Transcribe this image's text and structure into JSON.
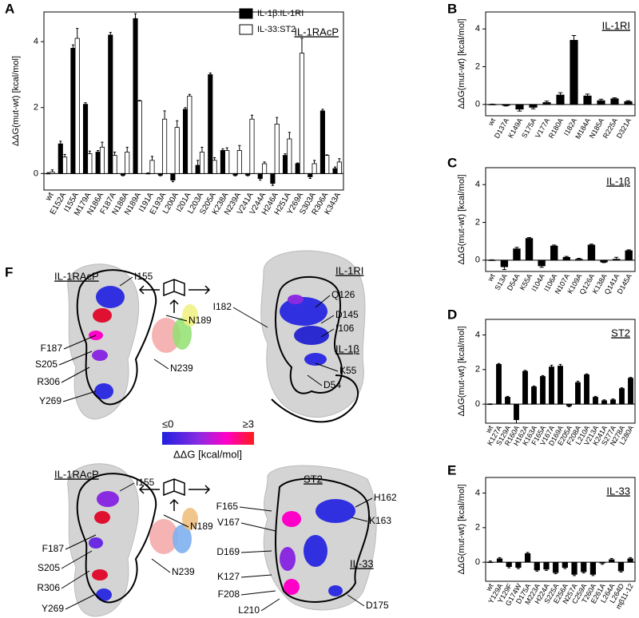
{
  "chart_data": [
    {
      "type": "bar",
      "panel": "A",
      "y_label": "ΔΔG(mut-wt) [kcal/mol]",
      "annotation": "IL-1RAcP",
      "categories": [
        "wt",
        "E152A",
        "I155A",
        "M179A",
        "N186A",
        "F187A",
        "N188A",
        "N189A",
        "I191A",
        "E193A",
        "L200A",
        "I201A",
        "L203A",
        "S205A",
        "K238A",
        "N239A",
        "V241A",
        "V244A",
        "H246A",
        "H251A",
        "Y269A",
        "S303A",
        "R306A",
        "K343A"
      ],
      "series": [
        {
          "name": "IL-1β:IL-1RI",
          "color": "#000000",
          "values": [
            0,
            0.9,
            3.8,
            2.1,
            0.65,
            4.2,
            -0.05,
            4.7,
            0,
            -0.05,
            -0.2,
            1.95,
            0.25,
            3.0,
            0.7,
            -0.05,
            -0.05,
            -0.15,
            -0.3,
            0.55,
            0.3,
            -0.1,
            1.9,
            0.15
          ],
          "errors": [
            0.03,
            0.08,
            0.1,
            0.05,
            0.05,
            0.08,
            0.02,
            0.15,
            0.02,
            0.02,
            0.05,
            0.05,
            0.15,
            0.05,
            0.05,
            0.02,
            0.02,
            0.05,
            0.06,
            0.05,
            0.02,
            0.05,
            0.05,
            0.05
          ]
        },
        {
          "name": "IL-33:ST2",
          "color": "#ffffff",
          "values": [
            0.05,
            0.5,
            4.1,
            0.6,
            0.8,
            0.55,
            0.65,
            2.2,
            0.4,
            1.65,
            1.4,
            2.35,
            0.65,
            0.4,
            0.7,
            0.7,
            1.65,
            0.3,
            1.5,
            1.05,
            3.65,
            0.3,
            0.55,
            0.35
          ],
          "errors": [
            0.06,
            0.08,
            0.3,
            0.08,
            0.15,
            0.1,
            0.15,
            0.02,
            0.12,
            0.25,
            0.2,
            0.05,
            0.15,
            0.08,
            0.08,
            0.15,
            0.12,
            0.05,
            0.2,
            0.2,
            0.45,
            0.1,
            0.02,
            0.1
          ]
        }
      ],
      "ylim": [
        -0.5,
        4.9
      ],
      "yticks": [
        0,
        2,
        4
      ]
    },
    {
      "type": "bar",
      "panel": "B",
      "y_label": "ΔΔG(mut-wt) [kcal/mol]",
      "title": "IL-1RI",
      "categories": [
        "wt",
        "D137A",
        "K149A",
        "S175A",
        "V177A",
        "R180A",
        "I182A",
        "M184A",
        "N185A",
        "R225A",
        "D321A"
      ],
      "values": [
        0,
        -0.05,
        -0.25,
        -0.15,
        0.1,
        0.5,
        3.4,
        0.45,
        0.2,
        0.3,
        0.15
      ],
      "errors": [
        0.02,
        0.03,
        0.1,
        0.08,
        0.08,
        0.12,
        0.25,
        0.1,
        0.08,
        0.05,
        0.05
      ],
      "color": "#000000",
      "ylim": [
        -0.6,
        4.9
      ],
      "yticks": [
        0,
        2,
        4
      ]
    },
    {
      "type": "bar",
      "panel": "C",
      "y_label": "ΔΔG(mut-wt) [kcal/mol]",
      "title": "IL-1β",
      "categories": [
        "wt",
        "S13A",
        "D54A",
        "K55A",
        "I104A",
        "I106A",
        "N107A",
        "K109A",
        "Q126A",
        "K138A",
        "Q141A",
        "D145A"
      ],
      "values": [
        0,
        -0.35,
        0.6,
        1.15,
        -0.3,
        0.75,
        0.15,
        0.05,
        0.8,
        -0.1,
        0.05,
        0.5
      ],
      "errors": [
        0.02,
        0.15,
        0.08,
        0.05,
        0.08,
        0.05,
        0.05,
        0.05,
        0.05,
        0.03,
        0.1,
        0.05
      ],
      "color": "#000000",
      "ylim": [
        -0.6,
        4.9
      ],
      "yticks": [
        0,
        2,
        4
      ]
    },
    {
      "type": "bar",
      "panel": "D",
      "y_label": "ΔΔG(mut-wt) [kcal/mol]",
      "title": "ST2",
      "categories": [
        "wt",
        "K127A",
        "S129A",
        "R160A",
        "H162A",
        "K163A",
        "F165A",
        "V167A",
        "D169A",
        "E205A",
        "F208A",
        "L210A",
        "V213A",
        "K241A",
        "S277A",
        "N278A",
        "L280A"
      ],
      "values": [
        0,
        2.3,
        0.4,
        -0.9,
        1.9,
        1.0,
        1.6,
        2.15,
        2.2,
        -0.1,
        1.25,
        1.7,
        0.4,
        0.2,
        0.25,
        0.9,
        1.5
      ],
      "errors": [
        0.02,
        0.05,
        0.05,
        0.2,
        0.05,
        0.05,
        0.05,
        0.1,
        0.1,
        0.05,
        0.08,
        0.05,
        0.05,
        0.05,
        0.05,
        0.05,
        0.05
      ],
      "color": "#000000",
      "ylim": [
        -1.1,
        4.9
      ],
      "yticks": [
        0,
        2,
        4
      ]
    },
    {
      "type": "bar",
      "panel": "E",
      "y_label": "ΔΔG(mut-wt) [kcal/mol]",
      "title": "IL-33",
      "categories": [
        "wt",
        "Y129A",
        "Y129F",
        "G174W",
        "D175A",
        "M223A",
        "H224A",
        "S225A",
        "E256A",
        "N257A",
        "C259A",
        "T260A",
        "E261A",
        "L264A",
        "L264D",
        "mβ11-12"
      ],
      "values": [
        0,
        0.2,
        -0.25,
        -0.3,
        0.5,
        -0.45,
        -0.4,
        -0.6,
        -0.3,
        -0.7,
        -0.55,
        -0.7,
        -0.05,
        0.15,
        -0.5,
        0.2
      ],
      "errors": [
        0.07,
        0.07,
        0.07,
        0.07,
        0.07,
        0.07,
        0.07,
        0.07,
        0.07,
        0.07,
        0.07,
        0.07,
        0.07,
        0.07,
        0.07,
        0.07
      ],
      "color": "#000000",
      "ylim": [
        -1.1,
        4.9
      ],
      "yticks": [
        0,
        2,
        4
      ]
    }
  ],
  "structure_figure": {
    "panel": "F",
    "views": [
      {
        "labels": [
          "IL-1RAcP",
          "I155",
          "N189",
          "F187",
          "S205",
          "R306",
          "Y269",
          "N239"
        ]
      },
      {
        "labels": [
          "IL-1RI",
          "I182",
          "Q126",
          "D145",
          "I106",
          "IL-1β",
          "K55",
          "D54"
        ]
      },
      {
        "labels": [
          "IL-1RAcP",
          "I155",
          "N189",
          "F187",
          "S205",
          "R306",
          "N239",
          "Y269"
        ]
      },
      {
        "labels": [
          "ST2",
          "H162",
          "F165",
          "K163",
          "V167",
          "D169",
          "K127",
          "F208",
          "L210",
          "IL-33",
          "D175"
        ]
      }
    ],
    "colorbar": {
      "min_label": "≤0",
      "max_label": "≥3",
      "title": "ΔΔG [kcal/mol]"
    }
  }
}
